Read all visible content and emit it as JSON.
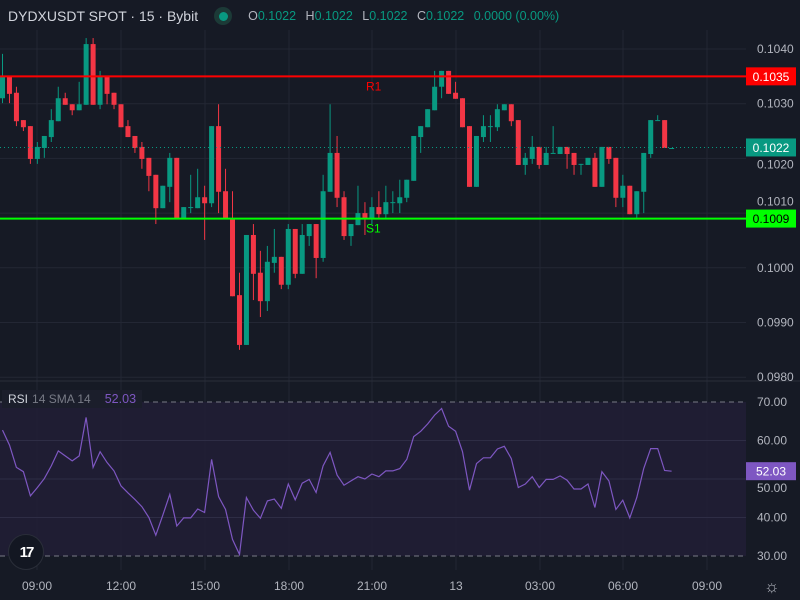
{
  "header": {
    "symbol": "DYDXUSDT SPOT · 15 · Bybit",
    "status": "market-open-dot",
    "ohlc": {
      "o_label": "O",
      "o": "0.1022",
      "h_label": "H",
      "h": "0.1022",
      "l_label": "L",
      "l": "0.1022",
      "c_label": "C",
      "c": "0.1022",
      "change": "0.0000 (0.00%)"
    }
  },
  "colors": {
    "up": "#089981",
    "down": "#f23645",
    "resistance": "#ff0000",
    "support": "#00ff00",
    "rsi": "#7e57c2",
    "background": "#161a25"
  },
  "price_axis": {
    "ticks": [
      "0.1040",
      "0.1030",
      "0.1020",
      "0.1010",
      "0.1000",
      "0.0990",
      "0.0980"
    ],
    "tick_values": [
      0.104,
      0.103,
      0.102,
      0.101,
      0.1,
      0.099,
      0.098
    ],
    "badges": {
      "resistance": "0.1035",
      "last": "0.1022",
      "support": "0.1009"
    }
  },
  "levels": {
    "resistance": {
      "label": "R1",
      "value": 0.1035
    },
    "support": {
      "label": "S1",
      "value": 0.1009
    },
    "last": 0.1022
  },
  "time_axis": {
    "labels": [
      "09:00",
      "12:00",
      "15:00",
      "18:00",
      "21:00",
      "13",
      "03:00",
      "06:00",
      "09:00"
    ]
  },
  "rsi": {
    "name": "RSI",
    "params": "14 SMA 14",
    "value": "52.03",
    "ticks": [
      "70.00",
      "60.00",
      "50.00",
      "40.00",
      "30.00"
    ],
    "tick_values": [
      70,
      60,
      50,
      40,
      30
    ],
    "band": [
      30,
      70
    ]
  },
  "chart_data": {
    "type": "candlestick",
    "interval": "15",
    "ylim": [
      0.098,
      0.1042
    ],
    "candles": [
      [
        0.1031,
        0.10391,
        0.10301,
        0.10351
      ],
      [
        0.10351,
        0.10351,
        0.10301,
        0.10318
      ],
      [
        0.1032,
        0.10331,
        0.10259,
        0.10268
      ],
      [
        0.1027,
        0.1027,
        0.1025,
        0.10257
      ],
      [
        0.10259,
        0.10259,
        0.1019,
        0.10199
      ],
      [
        0.10199,
        0.1023,
        0.1019,
        0.10221
      ],
      [
        0.10219,
        0.10241,
        0.10201,
        0.10241
      ],
      [
        0.10239,
        0.1029,
        0.1023,
        0.1027
      ],
      [
        0.10268,
        0.10331,
        0.10268,
        0.1031
      ],
      [
        0.1031,
        0.1032,
        0.10298,
        0.10298
      ],
      [
        0.10299,
        0.10299,
        0.10279,
        0.10288
      ],
      [
        0.10288,
        0.1034,
        0.10288,
        0.10299
      ],
      [
        0.10298,
        0.1042,
        0.10298,
        0.10409
      ],
      [
        0.10409,
        0.1042,
        0.10298,
        0.10298
      ],
      [
        0.10298,
        0.1036,
        0.1029,
        0.10351
      ],
      [
        0.10351,
        0.10351,
        0.10299,
        0.10318
      ],
      [
        0.1032,
        0.1032,
        0.1029,
        0.10298
      ],
      [
        0.10299,
        0.10299,
        0.10257,
        0.10257
      ],
      [
        0.10259,
        0.1027,
        0.10239,
        0.10239
      ],
      [
        0.10241,
        0.10241,
        0.1021,
        0.10219
      ],
      [
        0.10221,
        0.1023,
        0.10181,
        0.10199
      ],
      [
        0.10201,
        0.10201,
        0.1014,
        0.10168
      ],
      [
        0.1017,
        0.1017,
        0.1008,
        0.10109
      ],
      [
        0.10109,
        0.1015,
        0.10109,
        0.1015
      ],
      [
        0.10148,
        0.1021,
        0.1012,
        0.10201
      ],
      [
        0.10201,
        0.10201,
        0.10089,
        0.10089
      ],
      [
        0.10089,
        0.10111,
        0.10089,
        0.10111
      ],
      [
        0.10111,
        0.1017,
        0.101,
        0.10111
      ],
      [
        0.10109,
        0.10181,
        0.10109,
        0.10129
      ],
      [
        0.10129,
        0.1015,
        0.10051,
        0.10118
      ],
      [
        0.10118,
        0.10259,
        0.10111,
        0.10259
      ],
      [
        0.10259,
        0.10299,
        0.101,
        0.10139
      ],
      [
        0.1014,
        0.10181,
        0.10089,
        0.10089
      ],
      [
        0.10091,
        0.1014,
        0.09948,
        0.09948
      ],
      [
        0.0995,
        0.09991,
        0.0985,
        0.09859
      ],
      [
        0.09859,
        0.1006,
        0.09859,
        0.1006
      ],
      [
        0.1006,
        0.1008,
        0.09941,
        0.09989
      ],
      [
        0.09991,
        0.10031,
        0.0991,
        0.09939
      ],
      [
        0.09939,
        0.1004,
        0.09921,
        0.10011
      ],
      [
        0.10009,
        0.10071,
        0.09991,
        0.1002
      ],
      [
        0.1002,
        0.1002,
        0.09961,
        0.09969
      ],
      [
        0.09969,
        0.1008,
        0.09961,
        0.10071
      ],
      [
        0.10071,
        0.10071,
        0.09981,
        0.09989
      ],
      [
        0.09989,
        0.1008,
        0.09989,
        0.1006
      ],
      [
        0.10058,
        0.1008,
        0.1004,
        0.1008
      ],
      [
        0.1008,
        0.1008,
        0.09981,
        0.10018
      ],
      [
        0.10018,
        0.1017,
        0.10011,
        0.1014
      ],
      [
        0.10139,
        0.10299,
        0.10139,
        0.1021
      ],
      [
        0.1021,
        0.10241,
        0.10111,
        0.10128
      ],
      [
        0.10129,
        0.1014,
        0.10051,
        0.10058
      ],
      [
        0.10058,
        0.1008,
        0.1004,
        0.1008
      ],
      [
        0.10078,
        0.1015,
        0.10078,
        0.101
      ],
      [
        0.101,
        0.1012,
        0.1006,
        0.10089
      ],
      [
        0.10089,
        0.10129,
        0.1008,
        0.10111
      ],
      [
        0.10111,
        0.1014,
        0.10091,
        0.10098
      ],
      [
        0.10098,
        0.1015,
        0.10091,
        0.1012
      ],
      [
        0.1012,
        0.1014,
        0.101,
        0.1012
      ],
      [
        0.10118,
        0.10161,
        0.101,
        0.10129
      ],
      [
        0.10128,
        0.10161,
        0.1012,
        0.10161
      ],
      [
        0.10159,
        0.10241,
        0.10159,
        0.10241
      ],
      [
        0.10239,
        0.10259,
        0.1021,
        0.10259
      ],
      [
        0.10257,
        0.1029,
        0.10257,
        0.1029
      ],
      [
        0.10288,
        0.1036,
        0.10288,
        0.10331
      ],
      [
        0.10331,
        0.1036,
        0.1031,
        0.1036
      ],
      [
        0.1036,
        0.1036,
        0.10318,
        0.10318
      ],
      [
        0.1032,
        0.1034,
        0.10309,
        0.10309
      ],
      [
        0.1031,
        0.1031,
        0.10257,
        0.10257
      ],
      [
        0.10259,
        0.10259,
        0.10148,
        0.10148
      ],
      [
        0.10148,
        0.10241,
        0.10148,
        0.10241
      ],
      [
        0.10239,
        0.10279,
        0.1023,
        0.10259
      ],
      [
        0.10259,
        0.10279,
        0.1023,
        0.10259
      ],
      [
        0.10257,
        0.10299,
        0.1025,
        0.1029
      ],
      [
        0.10288,
        0.10299,
        0.10288,
        0.10299
      ],
      [
        0.10299,
        0.10299,
        0.10259,
        0.10268
      ],
      [
        0.1027,
        0.1027,
        0.10188,
        0.10188
      ],
      [
        0.10188,
        0.1021,
        0.1017,
        0.10201
      ],
      [
        0.10199,
        0.10241,
        0.1019,
        0.10221
      ],
      [
        0.10221,
        0.10221,
        0.10181,
        0.10188
      ],
      [
        0.10188,
        0.10221,
        0.10188,
        0.1021
      ],
      [
        0.1021,
        0.10259,
        0.1021,
        0.1021
      ],
      [
        0.10208,
        0.10221,
        0.10208,
        0.10221
      ],
      [
        0.10221,
        0.10221,
        0.10181,
        0.10208
      ],
      [
        0.1021,
        0.1021,
        0.1017,
        0.10188
      ],
      [
        0.1019,
        0.1019,
        0.1017,
        0.1019
      ],
      [
        0.10188,
        0.10201,
        0.10188,
        0.10201
      ],
      [
        0.10201,
        0.1021,
        0.10148,
        0.10148
      ],
      [
        0.10148,
        0.10221,
        0.10148,
        0.10221
      ],
      [
        0.10221,
        0.10221,
        0.1019,
        0.10199
      ],
      [
        0.10201,
        0.10201,
        0.10111,
        0.10128
      ],
      [
        0.10128,
        0.1017,
        0.10111,
        0.1015
      ],
      [
        0.1015,
        0.1015,
        0.10098,
        0.10098
      ],
      [
        0.10098,
        0.1014,
        0.10091,
        0.1014
      ],
      [
        0.10139,
        0.1021,
        0.101,
        0.1021
      ],
      [
        0.10208,
        0.1027,
        0.10201,
        0.1027
      ],
      [
        0.1027,
        0.10279,
        0.1027,
        0.1027
      ],
      [
        0.1027,
        0.1027,
        0.10219,
        0.10219
      ],
      [
        0.10219,
        0.10219,
        0.10219,
        0.10219
      ]
    ],
    "rsi_values": [
      62.7,
      58.8,
      53.0,
      51.9,
      45.6,
      47.8,
      50.1,
      53.4,
      57.3,
      56.0,
      54.7,
      56.0,
      66.0,
      53.0,
      57.1,
      54.3,
      52.1,
      48.2,
      46.4,
      44.7,
      42.8,
      40.0,
      35.4,
      40.6,
      46.0,
      37.8,
      39.9,
      39.9,
      42.2,
      41.3,
      55.1,
      45.4,
      42.1,
      34.3,
      30.4,
      45.2,
      41.9,
      39.8,
      44.3,
      44.8,
      42.4,
      48.7,
      44.6,
      48.9,
      49.9,
      46.5,
      53.4,
      56.9,
      51.0,
      48.4,
      49.5,
      50.6,
      50.0,
      51.3,
      50.6,
      52.1,
      52.1,
      52.7,
      55.1,
      61.0,
      62.4,
      64.3,
      66.6,
      68.3,
      63.7,
      62.4,
      57.1,
      47.1,
      54.0,
      55.5,
      55.5,
      57.8,
      58.5,
      55.3,
      47.8,
      48.7,
      50.6,
      47.8,
      49.9,
      49.9,
      50.8,
      49.7,
      47.4,
      47.4,
      48.7,
      42.6,
      51.9,
      49.5,
      42.1,
      44.5,
      39.9,
      45.2,
      52.7,
      57.9,
      57.9,
      52.2,
      52.03
    ],
    "rsi_ylim": [
      30,
      70
    ],
    "grid": true
  }
}
